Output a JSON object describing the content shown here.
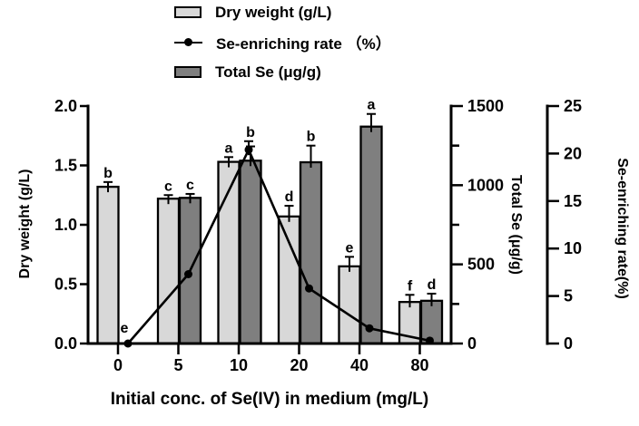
{
  "legend": {
    "items": [
      {
        "label": "Dry weight (g/L)",
        "swatch": "bar-light"
      },
      {
        "label": "Se-enriching rate （%）",
        "swatch": "line-dot"
      },
      {
        "label": "Total Se (μg/g)",
        "swatch": "bar-dark"
      }
    ]
  },
  "colors": {
    "bar_light": "#d8d8d8",
    "bar_dark": "#7f7f7f",
    "line": "#000000",
    "text": "#000000"
  },
  "chart_data": {
    "type": "bar+line combo",
    "x_title": "Initial conc. of Se(IV) in medium (mg/L)",
    "categories": [
      "0",
      "5",
      "10",
      "20",
      "40",
      "80"
    ],
    "axes": {
      "left": {
        "label": "Dry weight (g/L)",
        "min": 0,
        "max": 2,
        "tick_values": [
          0,
          0.5,
          1,
          1.5,
          2
        ],
        "tick_labels": [
          "0.0",
          "0.5",
          "1.0",
          "1.5",
          "2.0"
        ]
      },
      "right_total_se": {
        "label": "Total Se (μg/g)",
        "min": 0,
        "max": 1500,
        "major_tick_values": [
          0,
          500,
          1000,
          1500
        ],
        "minor_tick_values": [
          250,
          750,
          1250
        ]
      },
      "right_rate": {
        "label": "Se-enriching rate(%)",
        "min": 0,
        "max": 25,
        "tick_values": [
          0,
          5,
          10,
          15,
          20,
          25
        ]
      }
    },
    "series": [
      {
        "name": "Dry weight (g/L)",
        "type": "bar",
        "axis": "left",
        "values": [
          1.32,
          1.22,
          1.53,
          1.07,
          0.65,
          0.35
        ],
        "errors": [
          0.04,
          0.03,
          0.04,
          0.09,
          0.08,
          0.06
        ],
        "letters": [
          "b",
          "c",
          "a",
          "d",
          "e",
          "f"
        ]
      },
      {
        "name": "Total Se (μg/g)",
        "type": "bar",
        "axis": "right_total_se",
        "values": [
          null,
          920,
          1155,
          1145,
          1370,
          270
        ],
        "errors": [
          null,
          25,
          90,
          105,
          80,
          45
        ],
        "letters": [
          null,
          "c",
          "b",
          "b",
          "a",
          "d"
        ]
      },
      {
        "name": "Se-enriching rate (%)",
        "type": "line",
        "axis": "right_rate",
        "values": [
          0,
          7.3,
          20.4,
          5.8,
          1.6,
          0.3
        ],
        "errors": [
          null,
          null,
          0.9,
          null,
          null,
          null
        ],
        "letters": [
          "e",
          null,
          null,
          null,
          null,
          null
        ]
      }
    ]
  }
}
